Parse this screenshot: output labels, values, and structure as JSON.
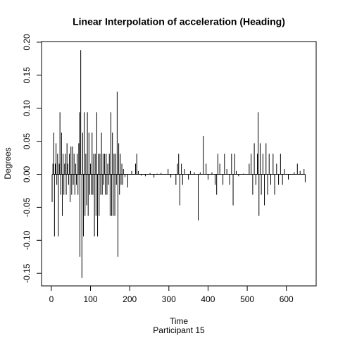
{
  "chart_data": {
    "type": "spike",
    "title": "Linear Interpolation of acceleration (Heading)",
    "xlabel": "Time",
    "ylabel": "Degrees",
    "subtitle": "Participant  15",
    "color": "#000000",
    "x": [
      2,
      4,
      6,
      8,
      10,
      12,
      14,
      16,
      18,
      20,
      22,
      24,
      26,
      28,
      30,
      32,
      34,
      36,
      38,
      40,
      42,
      44,
      46,
      48,
      50,
      52,
      54,
      56,
      58,
      60,
      62,
      64,
      66,
      68,
      70,
      72,
      73,
      75,
      78,
      80,
      82,
      84,
      86,
      88,
      90,
      92,
      94,
      96,
      98,
      100,
      102,
      104,
      106,
      108,
      110,
      112,
      114,
      116,
      118,
      120,
      122,
      124,
      126,
      128,
      130,
      132,
      134,
      136,
      138,
      140,
      142,
      144,
      146,
      148,
      150,
      152,
      154,
      156,
      158,
      160,
      162,
      164,
      166,
      168,
      170,
      172,
      174,
      176,
      178,
      180,
      182,
      184,
      188,
      195,
      205,
      215,
      218,
      222,
      230,
      240,
      252,
      262,
      270,
      280,
      298,
      305,
      318,
      322,
      325,
      328,
      332,
      335,
      340,
      350,
      355,
      365,
      375,
      380,
      388,
      395,
      400,
      410,
      418,
      422,
      425,
      430,
      438,
      442,
      448,
      455,
      460,
      464,
      468,
      472,
      478,
      490,
      505,
      510,
      514,
      518,
      522,
      526,
      528,
      530,
      533,
      536,
      540,
      544,
      548,
      552,
      556,
      560,
      566,
      570,
      575,
      580,
      585,
      590,
      595,
      605,
      620,
      628,
      635,
      645,
      648
    ],
    "values": [
      -0.042,
      0.016,
      0.063,
      -0.094,
      0.016,
      0.047,
      -0.016,
      0.031,
      -0.094,
      0.016,
      0.094,
      -0.031,
      0.063,
      -0.063,
      0.031,
      -0.031,
      0.016,
      0.031,
      -0.031,
      0.047,
      0.016,
      -0.016,
      0.031,
      -0.042,
      0.042,
      -0.031,
      0.042,
      -0.016,
      0.031,
      -0.031,
      0.016,
      -0.016,
      0.031,
      -0.031,
      0.047,
      0.094,
      -0.125,
      0.188,
      -0.157,
      0.063,
      -0.094,
      0.094,
      -0.063,
      0.031,
      -0.047,
      0.094,
      -0.063,
      0.063,
      -0.031,
      0.016,
      -0.031,
      0.063,
      -0.031,
      0.031,
      -0.094,
      0.031,
      -0.063,
      0.094,
      -0.094,
      0.031,
      -0.063,
      0.031,
      -0.031,
      0.063,
      -0.031,
      0.031,
      -0.016,
      0.031,
      -0.031,
      0.031,
      -0.031,
      0.016,
      -0.016,
      0.031,
      -0.063,
      0.094,
      -0.063,
      0.063,
      -0.063,
      0.031,
      -0.063,
      0.031,
      -0.016,
      0.125,
      -0.125,
      0.047,
      -0.031,
      0.031,
      -0.016,
      0.016,
      -0.016,
      0.008,
      -0.004,
      -0.02,
      0.005,
      0.016,
      0.031,
      0.005,
      -0.002,
      -0.003,
      0.002,
      -0.005,
      0.001,
      0.002,
      0.008,
      -0.005,
      -0.016,
      0.016,
      0.031,
      -0.047,
      0.016,
      -0.016,
      0.008,
      -0.008,
      0.005,
      0.003,
      -0.07,
      0.003,
      0.058,
      0.016,
      -0.008,
      0.003,
      -0.016,
      -0.031,
      0.031,
      0.016,
      -0.016,
      0.031,
      0.008,
      -0.016,
      0.031,
      -0.047,
      0.031,
      0.005,
      -0.003,
      0.001,
      0.016,
      0.031,
      -0.031,
      0.047,
      -0.016,
      0.031,
      0.094,
      -0.063,
      0.047,
      -0.031,
      0.031,
      -0.047,
      0.047,
      -0.031,
      0.031,
      -0.016,
      0.031,
      -0.031,
      0.016,
      -0.016,
      0.031,
      -0.016,
      0.008,
      -0.008,
      0.003,
      0.016,
      0.005,
      0.008,
      -0.012
    ],
    "xlim": [
      -25,
      676
    ],
    "xticks": [
      0,
      100,
      200,
      300,
      400,
      500,
      600
    ],
    "ylim": [
      -0.169,
      0.201
    ],
    "yticks": [
      -0.15,
      {
        "value": -0.1,
        "label": "-0.10"
      },
      -0.05,
      {
        "value": 0,
        "label": "0.00"
      },
      0.05,
      {
        "value": 0.1,
        "label": "0.10"
      },
      0.15,
      {
        "value": 0.2,
        "label": "0.20"
      }
    ]
  }
}
